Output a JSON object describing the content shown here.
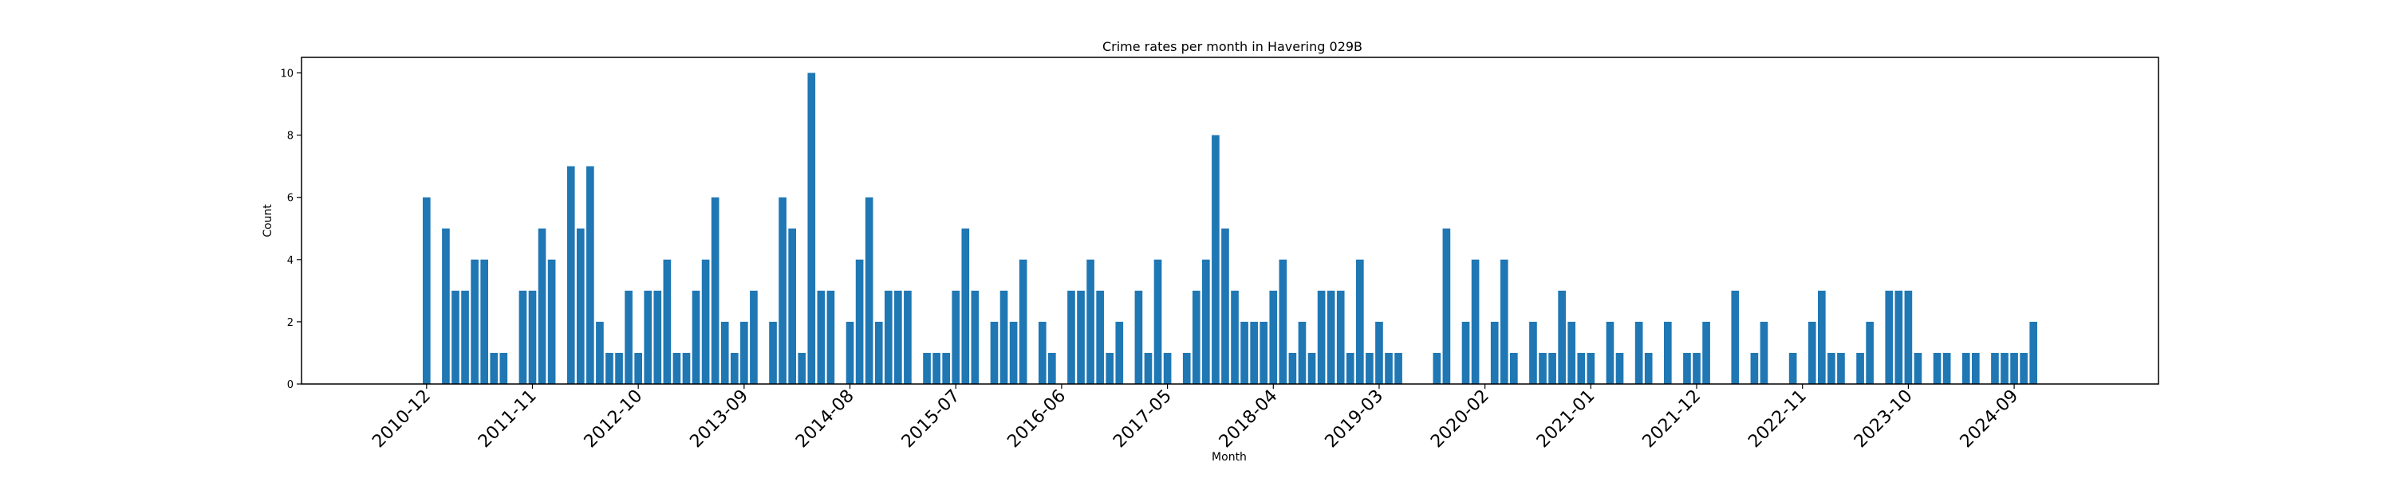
{
  "chart_data": {
    "type": "bar",
    "title": "Crime rates per month in Havering 029B",
    "xlabel": "Month",
    "ylabel": "Count",
    "ylim": [
      0,
      10.5
    ],
    "yticks": [
      "0",
      "2",
      "4",
      "6",
      "8",
      "10"
    ],
    "xticks": [
      "2010-12",
      "2011-11",
      "2012-10",
      "2013-09",
      "2014-08",
      "2015-07",
      "2016-06",
      "2017-05",
      "2018-04",
      "2019-03",
      "2020-02",
      "2021-01",
      "2021-12",
      "2022-11",
      "2023-10",
      "2024-09"
    ],
    "color": "#1f77b4",
    "grid": false,
    "legend": false,
    "bars": [
      {
        "x": "2010-12",
        "y": 6
      },
      {
        "x": "2011-02",
        "y": 5
      },
      {
        "x": "2011-03",
        "y": 3
      },
      {
        "x": "2011-04",
        "y": 3
      },
      {
        "x": "2011-05",
        "y": 4
      },
      {
        "x": "2011-06",
        "y": 4
      },
      {
        "x": "2011-07",
        "y": 1
      },
      {
        "x": "2011-08",
        "y": 1
      },
      {
        "x": "2011-10",
        "y": 3
      },
      {
        "x": "2011-11",
        "y": 3
      },
      {
        "x": "2011-12",
        "y": 5
      },
      {
        "x": "2012-01",
        "y": 4
      },
      {
        "x": "2012-03",
        "y": 7
      },
      {
        "x": "2012-04",
        "y": 5
      },
      {
        "x": "2012-05",
        "y": 7
      },
      {
        "x": "2012-06",
        "y": 2
      },
      {
        "x": "2012-07",
        "y": 1
      },
      {
        "x": "2012-08",
        "y": 1
      },
      {
        "x": "2012-09",
        "y": 3
      },
      {
        "x": "2012-10",
        "y": 1
      },
      {
        "x": "2012-11",
        "y": 3
      },
      {
        "x": "2012-12",
        "y": 3
      },
      {
        "x": "2013-01",
        "y": 4
      },
      {
        "x": "2013-02",
        "y": 1
      },
      {
        "x": "2013-03",
        "y": 1
      },
      {
        "x": "2013-04",
        "y": 3
      },
      {
        "x": "2013-05",
        "y": 4
      },
      {
        "x": "2013-06",
        "y": 6
      },
      {
        "x": "2013-07",
        "y": 2
      },
      {
        "x": "2013-08",
        "y": 1
      },
      {
        "x": "2013-09",
        "y": 2
      },
      {
        "x": "2013-10",
        "y": 3
      },
      {
        "x": "2013-12",
        "y": 2
      },
      {
        "x": "2014-01",
        "y": 6
      },
      {
        "x": "2014-02",
        "y": 5
      },
      {
        "x": "2014-03",
        "y": 1
      },
      {
        "x": "2014-04",
        "y": 10
      },
      {
        "x": "2014-05",
        "y": 3
      },
      {
        "x": "2014-06",
        "y": 3
      },
      {
        "x": "2014-08",
        "y": 2
      },
      {
        "x": "2014-09",
        "y": 4
      },
      {
        "x": "2014-10",
        "y": 6
      },
      {
        "x": "2014-11",
        "y": 2
      },
      {
        "x": "2014-12",
        "y": 3
      },
      {
        "x": "2015-01",
        "y": 3
      },
      {
        "x": "2015-02",
        "y": 3
      },
      {
        "x": "2015-04",
        "y": 1
      },
      {
        "x": "2015-05",
        "y": 1
      },
      {
        "x": "2015-06",
        "y": 1
      },
      {
        "x": "2015-07",
        "y": 3
      },
      {
        "x": "2015-08",
        "y": 5
      },
      {
        "x": "2015-09",
        "y": 3
      },
      {
        "x": "2015-11",
        "y": 2
      },
      {
        "x": "2015-12",
        "y": 3
      },
      {
        "x": "2016-01",
        "y": 2
      },
      {
        "x": "2016-02",
        "y": 4
      },
      {
        "x": "2016-04",
        "y": 2
      },
      {
        "x": "2016-05",
        "y": 1
      },
      {
        "x": "2016-07",
        "y": 3
      },
      {
        "x": "2016-08",
        "y": 3
      },
      {
        "x": "2016-09",
        "y": 4
      },
      {
        "x": "2016-10",
        "y": 3
      },
      {
        "x": "2016-11",
        "y": 1
      },
      {
        "x": "2016-12",
        "y": 2
      },
      {
        "x": "2017-02",
        "y": 3
      },
      {
        "x": "2017-03",
        "y": 1
      },
      {
        "x": "2017-04",
        "y": 4
      },
      {
        "x": "2017-05",
        "y": 1
      },
      {
        "x": "2017-07",
        "y": 1
      },
      {
        "x": "2017-08",
        "y": 3
      },
      {
        "x": "2017-09",
        "y": 4
      },
      {
        "x": "2017-10",
        "y": 8
      },
      {
        "x": "2017-11",
        "y": 5
      },
      {
        "x": "2017-12",
        "y": 3
      },
      {
        "x": "2018-01",
        "y": 2
      },
      {
        "x": "2018-02",
        "y": 2
      },
      {
        "x": "2018-03",
        "y": 2
      },
      {
        "x": "2018-04",
        "y": 3
      },
      {
        "x": "2018-05",
        "y": 4
      },
      {
        "x": "2018-06",
        "y": 1
      },
      {
        "x": "2018-07",
        "y": 2
      },
      {
        "x": "2018-08",
        "y": 1
      },
      {
        "x": "2018-09",
        "y": 3
      },
      {
        "x": "2018-10",
        "y": 3
      },
      {
        "x": "2018-11",
        "y": 3
      },
      {
        "x": "2018-12",
        "y": 1
      },
      {
        "x": "2019-01",
        "y": 4
      },
      {
        "x": "2019-02",
        "y": 1
      },
      {
        "x": "2019-03",
        "y": 2
      },
      {
        "x": "2019-04",
        "y": 1
      },
      {
        "x": "2019-05",
        "y": 1
      },
      {
        "x": "2019-09",
        "y": 1
      },
      {
        "x": "2019-10",
        "y": 5
      },
      {
        "x": "2019-12",
        "y": 2
      },
      {
        "x": "2020-01",
        "y": 4
      },
      {
        "x": "2020-03",
        "y": 2
      },
      {
        "x": "2020-04",
        "y": 4
      },
      {
        "x": "2020-05",
        "y": 1
      },
      {
        "x": "2020-07",
        "y": 2
      },
      {
        "x": "2020-08",
        "y": 1
      },
      {
        "x": "2020-09",
        "y": 1
      },
      {
        "x": "2020-10",
        "y": 3
      },
      {
        "x": "2020-11",
        "y": 2
      },
      {
        "x": "2020-12",
        "y": 1
      },
      {
        "x": "2021-01",
        "y": 1
      },
      {
        "x": "2021-03",
        "y": 2
      },
      {
        "x": "2021-04",
        "y": 1
      },
      {
        "x": "2021-06",
        "y": 2
      },
      {
        "x": "2021-07",
        "y": 1
      },
      {
        "x": "2021-09",
        "y": 2
      },
      {
        "x": "2021-11",
        "y": 1
      },
      {
        "x": "2021-12",
        "y": 1
      },
      {
        "x": "2022-01",
        "y": 2
      },
      {
        "x": "2022-04",
        "y": 3
      },
      {
        "x": "2022-06",
        "y": 1
      },
      {
        "x": "2022-07",
        "y": 2
      },
      {
        "x": "2022-10",
        "y": 1
      },
      {
        "x": "2022-12",
        "y": 2
      },
      {
        "x": "2023-01",
        "y": 3
      },
      {
        "x": "2023-02",
        "y": 1
      },
      {
        "x": "2023-03",
        "y": 1
      },
      {
        "x": "2023-05",
        "y": 1
      },
      {
        "x": "2023-06",
        "y": 2
      },
      {
        "x": "2023-08",
        "y": 3
      },
      {
        "x": "2023-09",
        "y": 3
      },
      {
        "x": "2023-10",
        "y": 3
      },
      {
        "x": "2023-11",
        "y": 1
      },
      {
        "x": "2024-01",
        "y": 1
      },
      {
        "x": "2024-02",
        "y": 1
      },
      {
        "x": "2024-04",
        "y": 1
      },
      {
        "x": "2024-05",
        "y": 1
      },
      {
        "x": "2024-07",
        "y": 1
      },
      {
        "x": "2024-08",
        "y": 1
      },
      {
        "x": "2024-09",
        "y": 1
      },
      {
        "x": "2024-10",
        "y": 1
      },
      {
        "x": "2024-11",
        "y": 2
      }
    ]
  }
}
